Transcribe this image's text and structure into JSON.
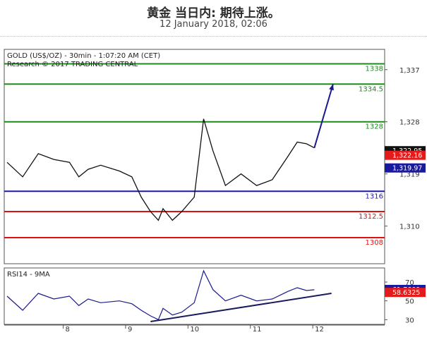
{
  "header": {
    "title": "黄金 当日内: 期待上涨。",
    "subtitle": "12 January 2018, 02:06"
  },
  "chart_data": {
    "type": "candlestick",
    "instrument_label": "GOLD (US$/OZ) - 30min - 1:07:20 AM (CET)",
    "source_label": "Research © 2017 TRADING CENTRAL",
    "xlabel": "",
    "ylabel": "",
    "x_ticks": [
      "8",
      "9",
      "10",
      "11",
      "12"
    ],
    "y_ticks": [
      "1,337",
      "1,328",
      "1,319",
      "1,310"
    ],
    "y_tick_values": [
      1337,
      1328,
      1319,
      1310
    ],
    "ylim": [
      1303.5,
      1340.5
    ],
    "resistance_levels": [
      {
        "label": "1338",
        "value": 1338,
        "color": "#1b8c1b"
      },
      {
        "label": "1334.5",
        "value": 1334.5,
        "color": "#1b8c1b"
      },
      {
        "label": "1328",
        "value": 1328,
        "color": "#1b8c1b"
      }
    ],
    "pivot_level": {
      "label": "1316",
      "value": 1316,
      "color": "#1a1aa8"
    },
    "support_levels": [
      {
        "label": "1312.5",
        "value": 1312.5,
        "color": "#dd1111"
      },
      {
        "label": "1308",
        "value": 1308,
        "color": "#dd1111"
      }
    ],
    "current_price_label": "1,322.95",
    "current_price": 1322.95,
    "price_marker_2_label": "1,322.16",
    "price_marker_2": 1322.16,
    "ma_marker_label": "1,319.97",
    "ma_marker": 1319.97,
    "price_line": {
      "x": [
        0,
        0.5,
        1.0,
        1.5,
        2.0,
        2.3,
        2.6,
        3.0,
        3.6,
        4.0,
        4.3,
        4.6,
        4.85,
        5.0,
        5.3,
        5.6,
        6.0,
        6.3,
        6.6,
        7.0,
        7.5,
        8.0,
        8.5,
        9.0,
        9.3,
        9.6,
        9.85
      ],
      "values": [
        1321,
        1318.5,
        1322.5,
        1321.5,
        1321,
        1318.5,
        1319.8,
        1320.5,
        1319.5,
        1318.5,
        1315,
        1312.5,
        1311,
        1313,
        1311,
        1312.5,
        1315,
        1328.5,
        1323,
        1317,
        1319,
        1317,
        1318,
        1322,
        1324.5,
        1324.2,
        1323.5
      ]
    },
    "projection_arrow": {
      "from": [
        9.85,
        1323.5
      ],
      "to": [
        10.45,
        1334.5
      ]
    },
    "rsi": {
      "label": "RSI14 - 9MA",
      "ylim": [
        25,
        85
      ],
      "y_ticks": [
        "70",
        "50",
        "30"
      ],
      "y_tick_values": [
        70,
        50,
        30
      ],
      "current_label": "61.7609",
      "current": 61.7609,
      "ma_label": "58.6325",
      "ma": 58.6325,
      "line": {
        "x": [
          0,
          0.5,
          1.0,
          1.5,
          2.0,
          2.3,
          2.6,
          3.0,
          3.6,
          4.0,
          4.3,
          4.6,
          4.85,
          5.0,
          5.3,
          5.6,
          6.0,
          6.3,
          6.6,
          7.0,
          7.5,
          8.0,
          8.5,
          9.0,
          9.3,
          9.6,
          9.85
        ],
        "values": [
          55,
          40,
          58,
          52,
          55,
          45,
          52,
          48,
          50,
          47,
          40,
          34,
          30,
          42,
          35,
          38,
          48,
          82,
          62,
          50,
          56,
          50,
          52,
          60,
          64,
          61,
          61.8
        ]
      },
      "trendline": {
        "from": [
          4.6,
          28
        ],
        "to": [
          10.4,
          58
        ]
      }
    }
  }
}
